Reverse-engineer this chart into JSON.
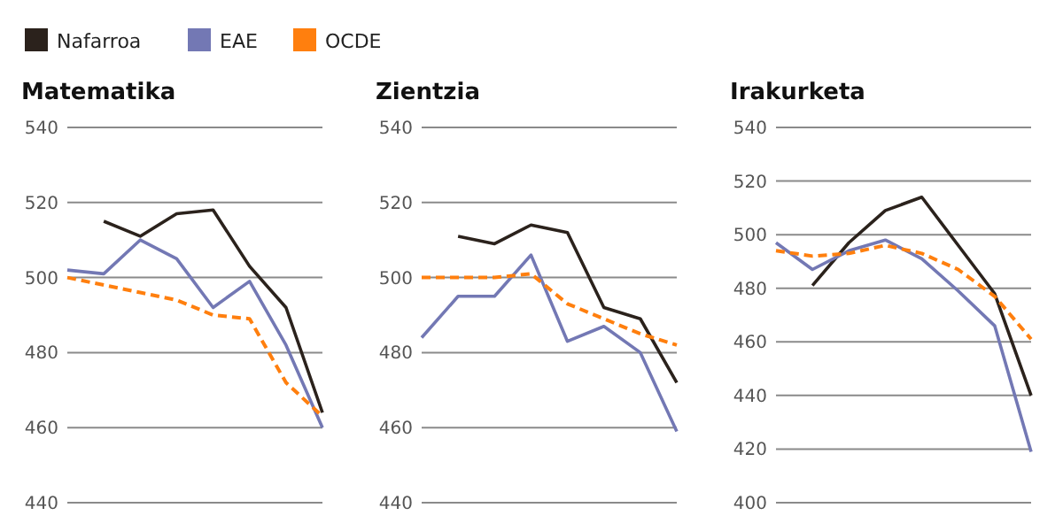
{
  "chart_data": [
    {
      "type": "line",
      "title": "Matematika",
      "categories": [
        null,
        null,
        null,
        null,
        null,
        null,
        null,
        null
      ],
      "ylim": [
        440,
        540
      ],
      "yticks": [
        440,
        460,
        480,
        500,
        520,
        540
      ],
      "grid": "y",
      "legend": "top left",
      "tick_labels": "y",
      "series": [
        {
          "name": "Nafarroa",
          "color": "#2b221c",
          "values": [
            null,
            515,
            511,
            517,
            518,
            503,
            492,
            464
          ]
        },
        {
          "name": "EAE",
          "color": "#7378b4",
          "values": [
            502,
            501,
            510,
            505,
            492,
            499,
            482,
            460
          ]
        },
        {
          "name": "OCDE",
          "color": "#ff7f0e",
          "line_style": "dashed",
          "values": [
            500,
            498,
            496,
            494,
            490,
            489,
            472,
            463
          ]
        }
      ]
    },
    {
      "type": "line",
      "title": "Zientzia",
      "categories": [
        null,
        null,
        null,
        null,
        null,
        null,
        null,
        null
      ],
      "ylim": [
        440,
        540
      ],
      "yticks": [
        440,
        460,
        480,
        500,
        520,
        540
      ],
      "grid": "y",
      "tick_labels": "y",
      "series": [
        {
          "color": "#2b221c",
          "values": [
            null,
            511,
            509,
            514,
            512,
            492,
            489,
            472
          ]
        },
        {
          "color": "#7378b4",
          "values": [
            484,
            495,
            495,
            506,
            483,
            487,
            480,
            459
          ]
        },
        {
          "color": "#ff7f0e",
          "line_style": "dashed",
          "values": [
            500,
            500,
            500,
            501,
            493,
            489,
            485,
            482
          ]
        }
      ]
    },
    {
      "type": "line",
      "title": "Irakurketa",
      "categories": [
        null,
        null,
        null,
        null,
        null,
        null,
        null,
        null
      ],
      "ylim": [
        400,
        540
      ],
      "yticks": [
        400,
        420,
        440,
        460,
        480,
        500,
        520,
        540
      ],
      "grid": "y",
      "tick_labels": "y",
      "series": [
        {
          "color": "#2b221c",
          "values": [
            null,
            481,
            497,
            509,
            514,
            496,
            478,
            440
          ]
        },
        {
          "color": "#7378b4",
          "values": [
            497,
            487,
            494,
            498,
            491,
            479,
            466,
            419
          ]
        },
        {
          "color": "#ff7f0e",
          "line_style": "dashed",
          "values": [
            494,
            492,
            493,
            496,
            493,
            487,
            477,
            461
          ]
        }
      ]
    }
  ]
}
